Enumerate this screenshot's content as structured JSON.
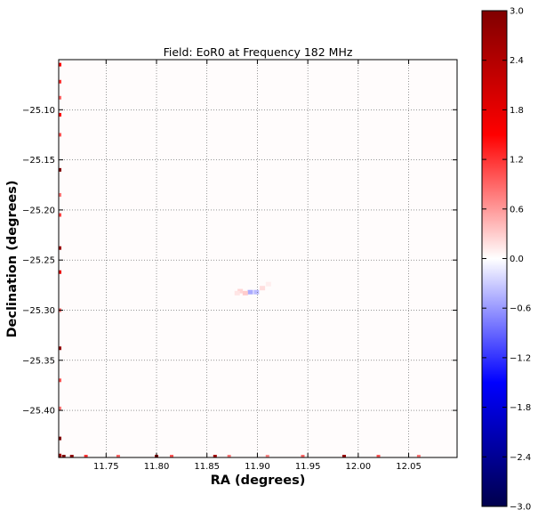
{
  "chart_data": {
    "type": "heatmap",
    "title": "Field: EoR0 at Frequency 182 MHz",
    "xlabel": "RA (degrees)",
    "ylabel": "Declination (degrees)",
    "xlim": [
      11.703,
      12.098
    ],
    "ylim": [
      -25.447,
      -25.05
    ],
    "x_ticks": [
      11.75,
      11.8,
      11.85,
      11.9,
      11.95,
      12.0,
      12.05
    ],
    "x_tick_labels": [
      "11.75",
      "11.80",
      "11.85",
      "11.90",
      "11.95",
      "12.00",
      "12.05"
    ],
    "y_ticks": [
      -25.1,
      -25.15,
      -25.2,
      -25.25,
      -25.3,
      -25.35,
      -25.4
    ],
    "y_tick_labels": [
      "−25.10",
      "−25.15",
      "−25.20",
      "−25.25",
      "−25.30",
      "−25.35",
      "−25.40"
    ],
    "grid": true,
    "colormap": "seismic",
    "colorbar": {
      "range": [
        -3.0,
        3.0
      ],
      "ticks": [
        3.0,
        2.4,
        1.8,
        1.2,
        0.6,
        0.0,
        -0.6,
        -1.2,
        -1.8,
        -2.4,
        -3.0
      ],
      "tick_labels": [
        "3.0",
        "2.4",
        "1.8",
        "1.2",
        "0.6",
        "0.0",
        "−0.6",
        "−1.2",
        "−1.8",
        "−2.4",
        "−3.0"
      ],
      "colors": [
        "#00004c",
        "#0000ff",
        "#ffffff",
        "#ff0000",
        "#800000"
      ]
    },
    "features": [
      {
        "ra": 11.893,
        "dec": -25.282,
        "value": -0.5
      },
      {
        "ra": 11.888,
        "dec": -25.283,
        "value": 0.3
      },
      {
        "ra": 11.899,
        "dec": -25.282,
        "value": -0.4
      },
      {
        "ra": 11.905,
        "dec": -25.278,
        "value": 0.2
      },
      {
        "ra": 11.883,
        "dec": -25.281,
        "value": 0.25
      },
      {
        "ra": 11.88,
        "dec": -25.283,
        "value": 0.15
      },
      {
        "ra": 11.911,
        "dec": -25.274,
        "value": 0.1
      }
    ],
    "edge_artifacts": {
      "left_column": [
        {
          "dec": -25.055,
          "value": 1.6
        },
        {
          "dec": -25.072,
          "value": 1.2
        },
        {
          "dec": -25.088,
          "value": 0.9
        },
        {
          "dec": -25.105,
          "value": 1.5
        },
        {
          "dec": -25.125,
          "value": 1.0
        },
        {
          "dec": -25.16,
          "value": 3.0
        },
        {
          "dec": -25.185,
          "value": 0.8
        },
        {
          "dec": -25.205,
          "value": 1.1
        },
        {
          "dec": -25.238,
          "value": 2.7
        },
        {
          "dec": -25.262,
          "value": 1.8
        },
        {
          "dec": -25.3,
          "value": 0.9
        },
        {
          "dec": -25.338,
          "value": 2.8
        },
        {
          "dec": -25.37,
          "value": 1.0
        },
        {
          "dec": -25.398,
          "value": 0.8
        },
        {
          "dec": -25.428,
          "value": 3.0
        },
        {
          "dec": -25.445,
          "value": 2.6
        }
      ],
      "bottom_row": [
        {
          "ra": 11.708,
          "value": 3.0
        },
        {
          "ra": 11.716,
          "value": 2.8
        },
        {
          "ra": 11.73,
          "value": 1.2
        },
        {
          "ra": 11.762,
          "value": 0.9
        },
        {
          "ra": 11.8,
          "value": 2.8
        },
        {
          "ra": 11.815,
          "value": 1.0
        },
        {
          "ra": 11.858,
          "value": 2.6
        },
        {
          "ra": 11.872,
          "value": 0.8
        },
        {
          "ra": 11.91,
          "value": 0.7
        },
        {
          "ra": 11.945,
          "value": 0.9
        },
        {
          "ra": 11.986,
          "value": 2.7
        },
        {
          "ra": 12.02,
          "value": 1.0
        },
        {
          "ra": 12.06,
          "value": 0.8
        }
      ]
    }
  }
}
